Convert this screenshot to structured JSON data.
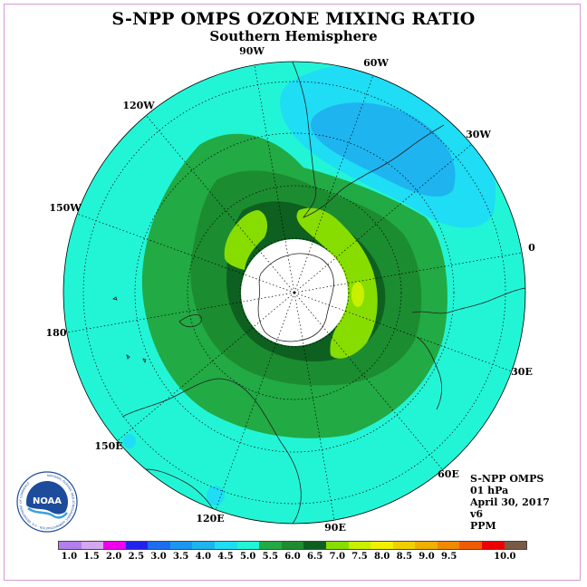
{
  "title": "S-NPP OMPS OZONE MIXING RATIO",
  "subtitle": "Southern Hemisphere",
  "info": {
    "instrument": "S-NPP OMPS",
    "level": "01 hPa",
    "date": "April 30, 2017",
    "version": "v6",
    "units": "PPM"
  },
  "longitude_labels": [
    "90W",
    "60W",
    "30W",
    "0",
    "30E",
    "60E",
    "90E",
    "120E",
    "150E",
    "180",
    "150W",
    "120W"
  ],
  "colorbar": {
    "colors": [
      "#b37fef",
      "#d6a7f1",
      "#ee00ee",
      "#2222ee",
      "#1e6ef0",
      "#1e96f0",
      "#1eb4f0",
      "#1eddf5",
      "#22f5d6",
      "#22aa44",
      "#1c8c30",
      "#0e6020",
      "#88dd00",
      "#c8f000",
      "#f0f000",
      "#f0d000",
      "#f0b000",
      "#f08a00",
      "#f05a00",
      "#ee0000",
      "#7a5a44"
    ],
    "labels": [
      "1.0",
      "1.5",
      "2.0",
      "2.5",
      "3.0",
      "3.5",
      "4.0",
      "4.5",
      "5.0",
      "5.5",
      "6.0",
      "6.5",
      "7.0",
      "7.5",
      "8.0",
      "8.5",
      "9.0",
      "9.5",
      "10.0"
    ]
  },
  "logo": {
    "text": "NOAA",
    "ring_text": "NATIONAL OCEANIC AND ATMOSPHERIC ADMINISTRATION · U.S. DEPARTMENT OF COMMERCE"
  }
}
